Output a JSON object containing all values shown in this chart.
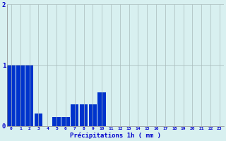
{
  "values": [
    1.0,
    1.0,
    1.0,
    0.2,
    0.0,
    0.15,
    0.15,
    0.35,
    0.35,
    0.35,
    0.55,
    0.0,
    0.0,
    0.0,
    0.0,
    0.0,
    0.0,
    0.0,
    0.0,
    0.0,
    0.0,
    0.0,
    0.0,
    0.0
  ],
  "xlabel": "Précipitations 1h ( mm )",
  "bar_color": "#0033cc",
  "background_color": "#d8f0f0",
  "grid_color": "#aabbbb",
  "text_color": "#0000cc",
  "ylim": [
    0,
    2
  ],
  "yticks": [
    0,
    1,
    2
  ],
  "num_bars": 24
}
